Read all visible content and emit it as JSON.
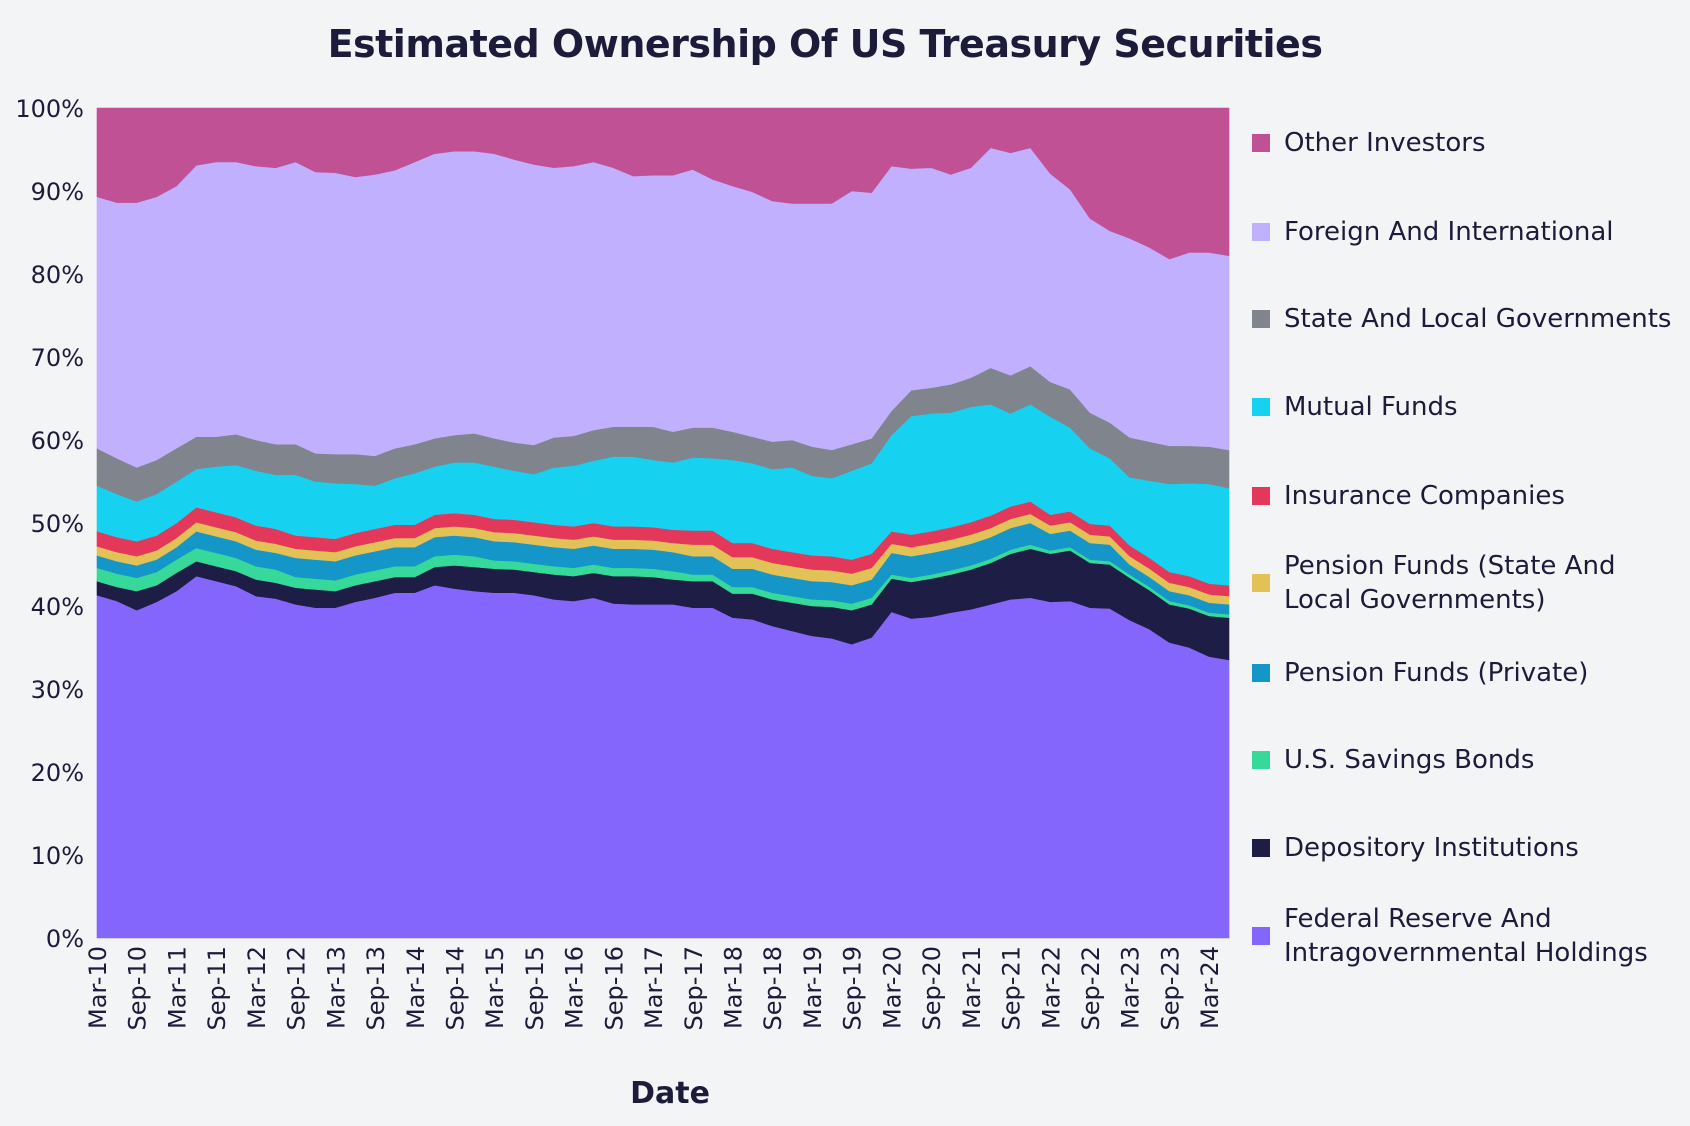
{
  "chart_data": {
    "type": "area",
    "stacked": true,
    "percent": true,
    "title": "Estimated Ownership Of US Treasury Securities",
    "xlabel": "Date",
    "ylabel": "",
    "ylim": [
      0,
      100
    ],
    "y_ticks": [
      "0%",
      "10%",
      "20%",
      "30%",
      "40%",
      "50%",
      "60%",
      "70%",
      "80%",
      "90%",
      "100%"
    ],
    "grid": false,
    "legend_position": "right",
    "categories": [
      "Mar-10",
      "Jun-10",
      "Sep-10",
      "Dec-10",
      "Mar-11",
      "Jun-11",
      "Sep-11",
      "Dec-11",
      "Mar-12",
      "Jun-12",
      "Sep-12",
      "Dec-12",
      "Mar-13",
      "Jun-13",
      "Sep-13",
      "Dec-13",
      "Mar-14",
      "Jun-14",
      "Sep-14",
      "Dec-14",
      "Mar-15",
      "Jun-15",
      "Sep-15",
      "Dec-15",
      "Mar-16",
      "Jun-16",
      "Sep-16",
      "Dec-16",
      "Mar-17",
      "Jun-17",
      "Sep-17",
      "Dec-17",
      "Mar-18",
      "Jun-18",
      "Sep-18",
      "Dec-18",
      "Mar-19",
      "Jun-19",
      "Sep-19",
      "Dec-19",
      "Mar-20",
      "Jun-20",
      "Sep-20",
      "Dec-20",
      "Mar-21",
      "Jun-21",
      "Sep-21",
      "Dec-21",
      "Mar-22",
      "Jun-22",
      "Sep-22",
      "Dec-22",
      "Mar-23",
      "Jun-23",
      "Sep-23",
      "Dec-23",
      "Mar-24",
      "Jun-24"
    ],
    "x_tick_labels": [
      "Mar-10",
      "Sep-10",
      "Mar-11",
      "Sep-11",
      "Mar-12",
      "Sep-12",
      "Mar-13",
      "Sep-13",
      "Mar-14",
      "Sep-14",
      "Mar-15",
      "Sep-15",
      "Mar-16",
      "Sep-16",
      "Mar-17",
      "Sep-17",
      "Mar-18",
      "Sep-18",
      "Mar-19",
      "Sep-19",
      "Mar-20",
      "Sep-20",
      "Mar-21",
      "Sep-21",
      "Mar-22",
      "Sep-22",
      "Mar-23",
      "Sep-23",
      "Mar-24"
    ],
    "series": [
      {
        "name": "Federal Reserve And Intragovernmental Holdings",
        "color": "#8466fd",
        "values": [
          41.3,
          40.6,
          39.5,
          40.5,
          41.8,
          43.6,
          43,
          42.4,
          41.2,
          40.9,
          40.2,
          39.8,
          39.8,
          40.5,
          41,
          41.6,
          41.6,
          42.5,
          42.1,
          41.8,
          41.6,
          41.6,
          41.3,
          40.8,
          40.6,
          41,
          40.3,
          40.2,
          40.2,
          40.2,
          39.8,
          39.8,
          38.6,
          38.4,
          37.6,
          37,
          36.4,
          36.1,
          35.4,
          36.2,
          39.3,
          38.5,
          38.7,
          39.2,
          39.6,
          40.2,
          40.8,
          41,
          40.5,
          40.6,
          39.8,
          39.7,
          38.3,
          37.2,
          35.6,
          35,
          33.9,
          33.5
        ]
      },
      {
        "name": "Depository Institutions",
        "color": "#1e1d45",
        "values": [
          1.7,
          1.7,
          2.3,
          2.0,
          2.2,
          1.8,
          1.8,
          1.8,
          2.0,
          1.9,
          2.0,
          2.2,
          2.0,
          2.0,
          2.0,
          1.9,
          1.9,
          2.2,
          2.8,
          2.9,
          2.9,
          2.8,
          2.8,
          3.0,
          3.0,
          3.0,
          3.3,
          3.4,
          3.3,
          3.0,
          3.2,
          3.2,
          2.9,
          3.1,
          3.2,
          3.4,
          3.6,
          3.8,
          4.1,
          4.0,
          4.0,
          4.4,
          4.6,
          4.6,
          4.8,
          5.0,
          5.5,
          5.9,
          5.8,
          6.1,
          5.4,
          5.3,
          5.1,
          4.7,
          4.6,
          4.7,
          4.9,
          5.1
        ]
      },
      {
        "name": "U.S. Savings Bonds",
        "color": "#36d99a",
        "values": [
          1.6,
          1.6,
          1.6,
          1.6,
          1.6,
          1.6,
          1.6,
          1.6,
          1.6,
          1.6,
          1.3,
          1.3,
          1.3,
          1.3,
          1.3,
          1.3,
          1.3,
          1.3,
          1.3,
          1.3,
          1.0,
          1.0,
          1.0,
          1.0,
          1.0,
          1.0,
          1.0,
          1.0,
          1.0,
          1.0,
          0.8,
          0.8,
          0.8,
          0.8,
          0.8,
          0.8,
          0.8,
          0.8,
          0.8,
          0.8,
          0.5,
          0.5,
          0.5,
          0.5,
          0.5,
          0.5,
          0.5,
          0.5,
          0.4,
          0.4,
          0.4,
          0.4,
          0.4,
          0.4,
          0.4,
          0.4,
          0.4,
          0.4
        ]
      },
      {
        "name": "Pension Funds (Private)",
        "color": "#1496c8",
        "values": [
          1.5,
          1.5,
          1.5,
          1.5,
          1.5,
          2.0,
          2.0,
          2.0,
          2.0,
          2.0,
          2.3,
          2.3,
          2.3,
          2.3,
          2.3,
          2.3,
          2.3,
          2.3,
          2.3,
          2.3,
          2.3,
          2.3,
          2.3,
          2.3,
          2.3,
          2.3,
          2.3,
          2.3,
          2.3,
          2.3,
          2.2,
          2.2,
          2.2,
          2.2,
          2.2,
          2.2,
          2.2,
          2.2,
          2.2,
          2.2,
          2.6,
          2.6,
          2.6,
          2.6,
          2.6,
          2.6,
          2.6,
          2.6,
          2.0,
          2.0,
          2.0,
          2.0,
          1.2,
          1.2,
          1.2,
          1.2,
          1.2,
          1.2
        ]
      },
      {
        "name": "Pension Funds (State And Local Governments)",
        "color": "#e2c157",
        "values": [
          1.1,
          1.1,
          1.1,
          1.1,
          1.1,
          1.1,
          1.1,
          1.1,
          1.1,
          1.1,
          1.1,
          1.1,
          1.1,
          1.1,
          1.1,
          1.1,
          1.1,
          1.1,
          1.1,
          1.1,
          1.1,
          1.1,
          1.1,
          1.1,
          1.1,
          1.1,
          1.1,
          1.1,
          1.1,
          1.1,
          1.4,
          1.4,
          1.4,
          1.4,
          1.4,
          1.4,
          1.4,
          1.4,
          1.4,
          1.4,
          1.1,
          1.1,
          1.1,
          1.1,
          1.1,
          1.1,
          1.1,
          1.1,
          1.0,
          1.0,
          1.0,
          1.0,
          1.0,
          1.0,
          1.0,
          1.0,
          1.0,
          1.0
        ]
      },
      {
        "name": "Insurance Companies",
        "color": "#e3385a",
        "values": [
          1.8,
          1.8,
          1.8,
          1.8,
          1.8,
          1.8,
          1.8,
          1.8,
          1.8,
          1.8,
          1.6,
          1.6,
          1.6,
          1.6,
          1.6,
          1.6,
          1.6,
          1.6,
          1.6,
          1.6,
          1.6,
          1.6,
          1.6,
          1.6,
          1.6,
          1.6,
          1.6,
          1.6,
          1.6,
          1.6,
          1.7,
          1.7,
          1.7,
          1.7,
          1.7,
          1.7,
          1.7,
          1.7,
          1.7,
          1.7,
          1.5,
          1.5,
          1.5,
          1.5,
          1.5,
          1.5,
          1.5,
          1.5,
          1.3,
          1.3,
          1.3,
          1.3,
          1.3,
          1.3,
          1.3,
          1.3,
          1.3,
          1.3
        ]
      },
      {
        "name": "Mutual Funds",
        "color": "#16d2f0",
        "values": [
          5.5,
          5.2,
          4.8,
          5.0,
          5.0,
          4.6,
          5.5,
          6.3,
          6.6,
          6.5,
          7.3,
          6.7,
          6.7,
          5.9,
          5.2,
          5.6,
          6.2,
          5.8,
          6.1,
          6.3,
          6.3,
          5.9,
          5.8,
          6.9,
          7.3,
          7.5,
          8.4,
          8.4,
          8.1,
          8.1,
          8.8,
          8.7,
          10.0,
          9.6,
          9.6,
          10.2,
          9.6,
          9.4,
          10.7,
          10.9,
          11.6,
          14.3,
          14.2,
          13.8,
          13.9,
          13.4,
          11.2,
          11.7,
          11.8,
          10.1,
          9.1,
          8.1,
          8.2,
          9.3,
          10.6,
          11.2,
          12.0,
          11.7
        ]
      },
      {
        "name": "State And Local Governments",
        "color": "#80848d",
        "values": [
          4.5,
          4.3,
          4.1,
          4.1,
          4.0,
          3.9,
          3.6,
          3.7,
          3.7,
          3.7,
          3.7,
          3.4,
          3.5,
          3.6,
          3.6,
          3.6,
          3.5,
          3.4,
          3.3,
          3.5,
          3.4,
          3.4,
          3.5,
          3.6,
          3.6,
          3.7,
          3.6,
          3.6,
          4.0,
          3.7,
          3.6,
          3.7,
          3.4,
          3.2,
          3.3,
          3.3,
          3.5,
          3.4,
          3.2,
          3.0,
          2.9,
          3.1,
          3.1,
          3.4,
          3.5,
          4.4,
          4.6,
          4.6,
          4.2,
          4.6,
          4.3,
          4.3,
          4.8,
          4.7,
          4.6,
          4.5,
          4.5,
          4.6
        ]
      },
      {
        "name": "Foreign And International",
        "color": "#c1b0fd",
        "values": [
          30.3,
          30.8,
          31.9,
          31.7,
          31.6,
          32.7,
          33.1,
          32.8,
          33.0,
          33.3,
          34.0,
          33.9,
          33.9,
          33.4,
          33.9,
          33.5,
          34.0,
          34.3,
          34.2,
          34.0,
          34.3,
          34.1,
          33.8,
          32.5,
          32.5,
          32.3,
          31.2,
          30.2,
          30.3,
          30.9,
          31.1,
          29.9,
          29.6,
          29.5,
          29.0,
          28.5,
          29.3,
          29.7,
          30.5,
          29.6,
          29.5,
          26.7,
          26.5,
          25.3,
          25.3,
          26.5,
          26.8,
          26.3,
          25.1,
          24.1,
          23.4,
          23.1,
          24.0,
          23.4,
          22.5,
          23.3,
          23.4,
          23.4
        ]
      },
      {
        "name": "Other Investors",
        "color": "#c05195",
        "values": [
          10.7,
          11.4,
          11.4,
          10.7,
          9.4,
          6.9,
          6.5,
          6.5,
          7.0,
          7.2,
          6.5,
          7.7,
          7.8,
          8.3,
          8.0,
          7.5,
          6.5,
          5.5,
          5.2,
          5.2,
          5.5,
          6.2,
          6.8,
          7.2,
          7.0,
          6.5,
          7.2,
          8.2,
          8.1,
          8.1,
          7.4,
          8.6,
          9.4,
          10.1,
          11.2,
          11.5,
          11.5,
          11.5,
          10.0,
          10.2,
          7.0,
          7.3,
          7.2,
          8.0,
          7.2,
          4.8,
          5.4,
          4.8,
          7.9,
          9.8,
          13.3,
          14.8,
          15.7,
          16.8,
          18.2,
          17.4,
          17.4,
          17.8
        ]
      }
    ]
  },
  "legend": [
    {
      "label": "Other Investors",
      "color": "#c05195"
    },
    {
      "label": "Foreign And International",
      "color": "#c1b0fd"
    },
    {
      "label": "State And Local Governments",
      "color": "#80848d"
    },
    {
      "label": "Mutual Funds",
      "color": "#16d2f0"
    },
    {
      "label": "Insurance Companies",
      "color": "#e3385a"
    },
    {
      "label": "Pension Funds (State And Local Governments)",
      "color": "#e2c157"
    },
    {
      "label": "Pension Funds (Private)",
      "color": "#1496c8"
    },
    {
      "label": "U.S. Savings Bonds",
      "color": "#36d99a"
    },
    {
      "label": "Depository Institutions",
      "color": "#1e1d45"
    },
    {
      "label": "Federal Reserve And Intragovernmental Holdings",
      "color": "#8466fd"
    }
  ]
}
